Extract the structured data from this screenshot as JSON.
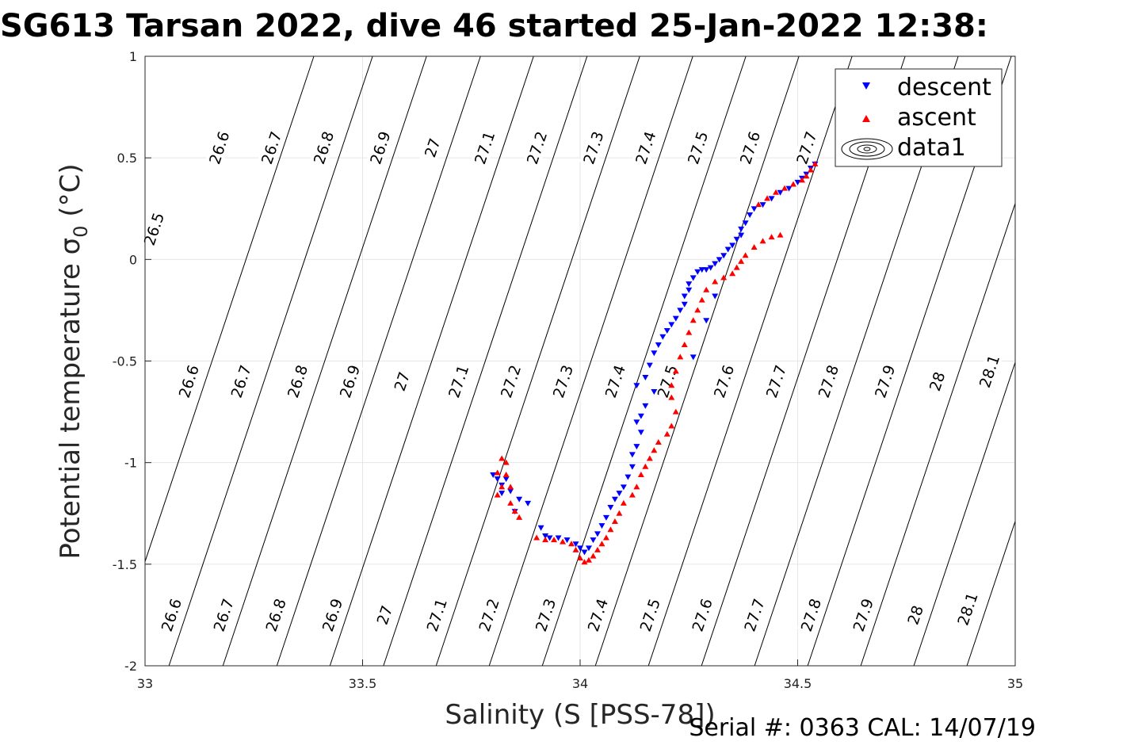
{
  "chart_data": {
    "type": "scatter",
    "title": "SG613 Tarsan 2022, dive 46 started 25-Jan-2022 12:38:",
    "xlabel": "Salinity (S [PSS-78])",
    "ylabel": "Potential temperature σ0 (°C)",
    "ylabel_parts": {
      "main": "Potential temperature ",
      "sigma": "σ",
      "sub": "0",
      "unit": " (°C)"
    },
    "xlim": [
      33,
      35
    ],
    "ylim": [
      -2,
      1
    ],
    "xticks": [
      "33",
      "33.5",
      "34",
      "34.5",
      "35"
    ],
    "yticks": [
      "1",
      "0.5",
      "0",
      "-0.5",
      "-1",
      "-1.5",
      "-2"
    ],
    "grid": true,
    "legend": {
      "placement": "top-right",
      "entries": [
        {
          "label": "descent",
          "color": "#0000ff",
          "marker": "triangle-down"
        },
        {
          "label": "ascent",
          "color": "#ff0000",
          "marker": "triangle-up"
        },
        {
          "label": "data1",
          "color": "#000000",
          "marker": "contour"
        }
      ]
    },
    "contours": {
      "levels": [
        26.5,
        26.6,
        26.7,
        26.8,
        26.9,
        27,
        27.1,
        27.2,
        27.3,
        27.4,
        27.5,
        27.6,
        27.7,
        27.8,
        27.9,
        28,
        28.1
      ],
      "tick_labels": [
        "26.5",
        "26.6",
        "26.7",
        "26.8",
        "26.9",
        "27",
        "27.1",
        "27.2",
        "27.3",
        "27.4",
        "27.5",
        "27.6",
        "27.7",
        "27.8",
        "27.9",
        "28",
        "28.1"
      ],
      "s_at_t_min": [
        32.92,
        33.055,
        33.179,
        33.303,
        33.425,
        33.548,
        33.669,
        33.791,
        33.913,
        34.035,
        34.157,
        34.279,
        34.401,
        34.523,
        34.645,
        34.767,
        34.889
      ],
      "s_per_deg": 0.156,
      "labels": [
        {
          "level": "26.5",
          "s": 33.02,
          "t": 0.15
        },
        {
          "level": "26.6",
          "s": 33.17,
          "t": 0.55
        },
        {
          "level": "26.6",
          "s": 33.1,
          "t": -0.6
        },
        {
          "level": "26.6",
          "s": 33.06,
          "t": -1.75
        },
        {
          "level": "26.7",
          "s": 33.29,
          "t": 0.55
        },
        {
          "level": "26.7",
          "s": 33.22,
          "t": -0.6
        },
        {
          "level": "26.7",
          "s": 33.18,
          "t": -1.75
        },
        {
          "level": "26.8",
          "s": 33.41,
          "t": 0.55
        },
        {
          "level": "26.8",
          "s": 33.35,
          "t": -0.6
        },
        {
          "level": "26.8",
          "s": 33.3,
          "t": -1.75
        },
        {
          "level": "26.9",
          "s": 33.54,
          "t": 0.55
        },
        {
          "level": "26.9",
          "s": 33.47,
          "t": -0.6
        },
        {
          "level": "26.9",
          "s": 33.43,
          "t": -1.75
        },
        {
          "level": "27",
          "s": 33.66,
          "t": 0.55
        },
        {
          "level": "27",
          "s": 33.59,
          "t": -0.6
        },
        {
          "level": "27",
          "s": 33.55,
          "t": -1.75
        },
        {
          "level": "27.1",
          "s": 33.78,
          "t": 0.55
        },
        {
          "level": "27.1",
          "s": 33.72,
          "t": -0.6
        },
        {
          "level": "27.1",
          "s": 33.67,
          "t": -1.75
        },
        {
          "level": "27.2",
          "s": 33.9,
          "t": 0.55
        },
        {
          "level": "27.2",
          "s": 33.84,
          "t": -0.6
        },
        {
          "level": "27.2",
          "s": 33.79,
          "t": -1.75
        },
        {
          "level": "27.3",
          "s": 34.03,
          "t": 0.55
        },
        {
          "level": "27.3",
          "s": 33.96,
          "t": -0.6
        },
        {
          "level": "27.3",
          "s": 33.92,
          "t": -1.75
        },
        {
          "level": "27.4",
          "s": 34.15,
          "t": 0.55
        },
        {
          "level": "27.4",
          "s": 34.08,
          "t": -0.6
        },
        {
          "level": "27.4",
          "s": 34.04,
          "t": -1.75
        },
        {
          "level": "27.5",
          "s": 34.27,
          "t": 0.55
        },
        {
          "level": "27.5",
          "s": 34.2,
          "t": -0.6
        },
        {
          "level": "27.5",
          "s": 34.16,
          "t": -1.75
        },
        {
          "level": "27.6",
          "s": 34.39,
          "t": 0.55
        },
        {
          "level": "27.6",
          "s": 34.33,
          "t": -0.6
        },
        {
          "level": "27.6",
          "s": 34.28,
          "t": -1.75
        },
        {
          "level": "27.7",
          "s": 34.52,
          "t": 0.55
        },
        {
          "level": "27.7",
          "s": 34.45,
          "t": -0.6
        },
        {
          "level": "27.7",
          "s": 34.4,
          "t": -1.75
        },
        {
          "level": "27.8",
          "s": 34.57,
          "t": -0.6
        },
        {
          "level": "27.8",
          "s": 34.53,
          "t": -1.75
        },
        {
          "level": "27.9",
          "s": 34.7,
          "t": -0.6
        },
        {
          "level": "27.9",
          "s": 34.65,
          "t": -1.75
        },
        {
          "level": "28",
          "s": 34.82,
          "t": -0.6
        },
        {
          "level": "28",
          "s": 34.77,
          "t": -1.75
        },
        {
          "level": "28.1",
          "s": 34.94,
          "t": -0.55
        },
        {
          "level": "28.1",
          "s": 34.89,
          "t": -1.72
        }
      ]
    },
    "series": [
      {
        "name": "descent",
        "color": "#0000ff",
        "marker": "triangle-down",
        "points": [
          [
            34.54,
            0.47
          ],
          [
            34.53,
            0.45
          ],
          [
            34.52,
            0.42
          ],
          [
            34.51,
            0.4
          ],
          [
            34.5,
            0.38
          ],
          [
            34.48,
            0.35
          ],
          [
            34.46,
            0.33
          ],
          [
            34.44,
            0.3
          ],
          [
            34.42,
            0.27
          ],
          [
            34.4,
            0.25
          ],
          [
            34.39,
            0.22
          ],
          [
            34.38,
            0.18
          ],
          [
            34.37,
            0.15
          ],
          [
            34.37,
            0.12
          ],
          [
            34.36,
            0.1
          ],
          [
            34.35,
            0.07
          ],
          [
            34.34,
            0.05
          ],
          [
            34.33,
            0.02
          ],
          [
            34.32,
            0.0
          ],
          [
            34.31,
            -0.02
          ],
          [
            34.3,
            -0.04
          ],
          [
            34.29,
            -0.05
          ],
          [
            34.28,
            -0.05
          ],
          [
            34.27,
            -0.06
          ],
          [
            34.26,
            -0.09
          ],
          [
            34.25,
            -0.12
          ],
          [
            34.25,
            -0.15
          ],
          [
            34.24,
            -0.18
          ],
          [
            34.24,
            -0.22
          ],
          [
            34.23,
            -0.25
          ],
          [
            34.22,
            -0.29
          ],
          [
            34.21,
            -0.32
          ],
          [
            34.2,
            -0.35
          ],
          [
            34.19,
            -0.38
          ],
          [
            34.18,
            -0.42
          ],
          [
            34.17,
            -0.46
          ],
          [
            34.16,
            -0.52
          ],
          [
            34.15,
            -0.58
          ],
          [
            34.13,
            -0.62
          ],
          [
            34.17,
            -0.65
          ],
          [
            34.15,
            -0.72
          ],
          [
            34.14,
            -0.77
          ],
          [
            34.13,
            -0.8
          ],
          [
            34.14,
            -0.85
          ],
          [
            34.13,
            -0.92
          ],
          [
            34.12,
            -0.96
          ],
          [
            34.12,
            -1.02
          ],
          [
            34.11,
            -1.07
          ],
          [
            34.1,
            -1.12
          ],
          [
            34.09,
            -1.15
          ],
          [
            34.08,
            -1.18
          ],
          [
            34.07,
            -1.22
          ],
          [
            34.06,
            -1.27
          ],
          [
            34.05,
            -1.31
          ],
          [
            34.04,
            -1.35
          ],
          [
            34.03,
            -1.38
          ],
          [
            34.02,
            -1.42
          ],
          [
            34.01,
            -1.44
          ],
          [
            34.0,
            -1.42
          ],
          [
            33.99,
            -1.4
          ],
          [
            33.97,
            -1.38
          ],
          [
            33.95,
            -1.37
          ],
          [
            33.93,
            -1.37
          ],
          [
            33.92,
            -1.36
          ],
          [
            33.91,
            -1.32
          ],
          [
            33.88,
            -1.2
          ],
          [
            33.86,
            -1.18
          ],
          [
            33.85,
            -1.24
          ],
          [
            33.84,
            -1.14
          ],
          [
            33.83,
            -1.08
          ],
          [
            33.82,
            -1.11
          ],
          [
            33.81,
            -1.08
          ],
          [
            33.8,
            -1.06
          ],
          [
            33.82,
            -1.15
          ],
          [
            34.26,
            -0.48
          ],
          [
            34.29,
            -0.3
          ],
          [
            34.31,
            -0.18
          ]
        ]
      },
      {
        "name": "ascent",
        "color": "#ff0000",
        "marker": "triangle-up",
        "points": [
          [
            34.54,
            0.47
          ],
          [
            34.53,
            0.44
          ],
          [
            34.52,
            0.41
          ],
          [
            34.51,
            0.39
          ],
          [
            34.49,
            0.37
          ],
          [
            34.47,
            0.35
          ],
          [
            34.45,
            0.33
          ],
          [
            34.43,
            0.3
          ],
          [
            34.41,
            0.27
          ],
          [
            34.46,
            0.12
          ],
          [
            34.44,
            0.11
          ],
          [
            34.42,
            0.09
          ],
          [
            34.4,
            0.06
          ],
          [
            34.38,
            0.02
          ],
          [
            34.37,
            -0.01
          ],
          [
            34.36,
            -0.04
          ],
          [
            34.35,
            -0.07
          ],
          [
            34.33,
            -0.09
          ],
          [
            34.31,
            -0.11
          ],
          [
            34.29,
            -0.15
          ],
          [
            34.28,
            -0.2
          ],
          [
            34.27,
            -0.25
          ],
          [
            34.26,
            -0.3
          ],
          [
            34.25,
            -0.36
          ],
          [
            34.24,
            -0.42
          ],
          [
            34.23,
            -0.48
          ],
          [
            34.22,
            -0.55
          ],
          [
            34.21,
            -0.62
          ],
          [
            34.21,
            -0.68
          ],
          [
            34.22,
            -0.75
          ],
          [
            34.21,
            -0.82
          ],
          [
            34.2,
            -0.86
          ],
          [
            34.18,
            -0.9
          ],
          [
            34.17,
            -0.94
          ],
          [
            34.16,
            -0.98
          ],
          [
            34.15,
            -1.02
          ],
          [
            34.14,
            -1.06
          ],
          [
            34.13,
            -1.12
          ],
          [
            34.12,
            -1.16
          ],
          [
            34.1,
            -1.2
          ],
          [
            34.09,
            -1.25
          ],
          [
            34.08,
            -1.29
          ],
          [
            34.07,
            -1.33
          ],
          [
            34.06,
            -1.37
          ],
          [
            34.05,
            -1.4
          ],
          [
            34.04,
            -1.43
          ],
          [
            34.03,
            -1.46
          ],
          [
            34.02,
            -1.48
          ],
          [
            34.01,
            -1.49
          ],
          [
            34.0,
            -1.47
          ],
          [
            33.99,
            -1.43
          ],
          [
            33.98,
            -1.4
          ],
          [
            33.96,
            -1.39
          ],
          [
            33.94,
            -1.38
          ],
          [
            33.92,
            -1.38
          ],
          [
            33.9,
            -1.37
          ],
          [
            33.86,
            -1.27
          ],
          [
            33.85,
            -1.24
          ],
          [
            33.84,
            -1.2
          ],
          [
            33.84,
            -1.12
          ],
          [
            33.83,
            -1.06
          ],
          [
            33.83,
            -1.0
          ],
          [
            33.82,
            -0.98
          ],
          [
            33.81,
            -1.05
          ],
          [
            33.82,
            -1.12
          ],
          [
            33.81,
            -1.16
          ]
        ]
      }
    ]
  },
  "footer": {
    "serial": "Serial #: 0363  CAL: 14/07/19"
  }
}
